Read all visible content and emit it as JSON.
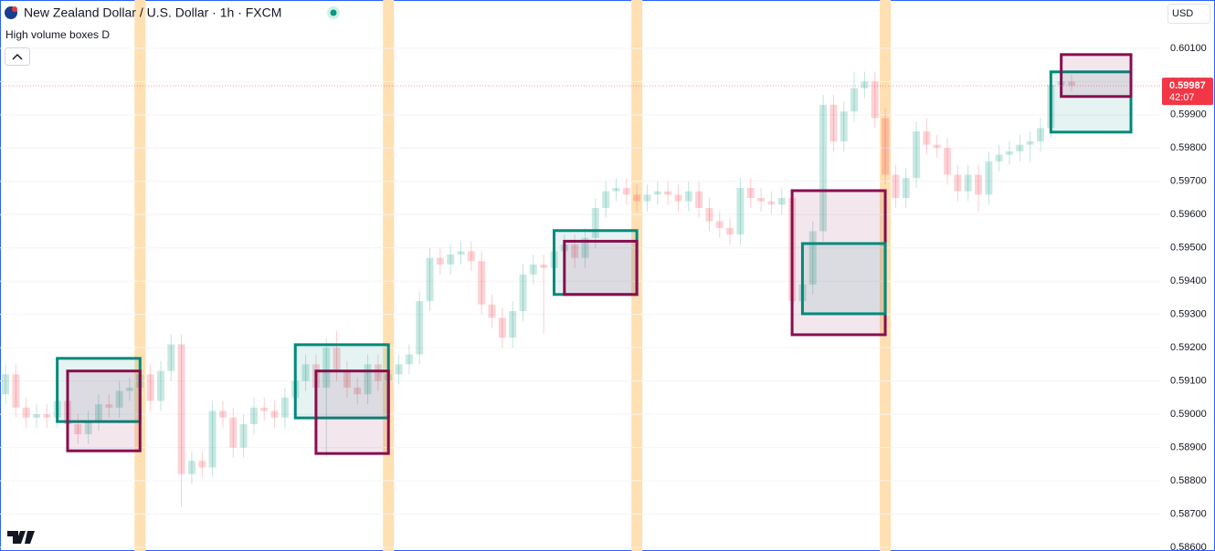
{
  "chart_data": {
    "type": "candlestick",
    "title": "New Zealand Dollar / U.S. Dollar · 1h · FXCM",
    "indicator": "High volume boxes D",
    "currency": "USD",
    "up_color": "#089981",
    "down_color": "#f23645",
    "open": [
      0.5906,
      0.5912,
      0.5902,
      0.5899,
      0.59,
      0.5899,
      0.5904,
      0.5897,
      0.5894,
      0.5898,
      0.5903,
      0.5902,
      0.5907,
      0.5908,
      0.5912,
      0.5904,
      0.5913,
      0.5921,
      0.5882,
      0.5886,
      0.5884,
      0.5901,
      0.5899,
      0.589,
      0.5897,
      0.5902,
      0.5901,
      0.5899,
      0.5905,
      0.591,
      0.5915,
      0.5908,
      0.592,
      0.5913,
      0.5908,
      0.5906,
      0.5915,
      0.591,
      0.5912,
      0.5915,
      0.5918,
      0.5934,
      0.5947,
      0.5945,
      0.5948,
      0.5949,
      0.5946,
      0.5933,
      0.5929,
      0.5923,
      0.5931,
      0.5942,
      0.5945,
      0.5944,
      0.5949,
      0.5951,
      0.5947,
      0.5953,
      0.5962,
      0.5967,
      0.5968,
      0.5966,
      0.5964,
      0.5966,
      0.5967,
      0.5966,
      0.5964,
      0.5967,
      0.5962,
      0.5958,
      0.5956,
      0.5954,
      0.5968,
      0.5965,
      0.5964,
      0.5963,
      0.5965,
      0.5934,
      0.5939,
      0.5955,
      0.5993,
      0.5982,
      0.5991,
      0.5998,
      0.6,
      0.5989,
      0.5972,
      0.5965,
      0.5971,
      0.5985,
      0.5981,
      0.598,
      0.5972,
      0.5967,
      0.5972,
      0.5966,
      0.5976,
      0.5978,
      0.5979,
      0.5981,
      0.5982,
      0.5986,
      0.5999,
      0.6
    ],
    "high": [
      0.5915,
      0.5915,
      0.5905,
      0.5903,
      0.5903,
      0.5907,
      0.5907,
      0.59,
      0.5901,
      0.5906,
      0.5906,
      0.591,
      0.5911,
      0.5915,
      0.5915,
      0.5916,
      0.5924,
      0.5924,
      0.5889,
      0.5889,
      0.5904,
      0.5904,
      0.5902,
      0.59,
      0.5905,
      0.5905,
      0.5904,
      0.5908,
      0.5913,
      0.5918,
      0.5918,
      0.5923,
      0.5925,
      0.5916,
      0.5911,
      0.5918,
      0.5918,
      0.5915,
      0.5918,
      0.5921,
      0.5937,
      0.595,
      0.595,
      0.5951,
      0.5952,
      0.5952,
      0.5949,
      0.5936,
      0.5932,
      0.5934,
      0.5945,
      0.5948,
      0.5948,
      0.5952,
      0.5954,
      0.5954,
      0.5956,
      0.5965,
      0.597,
      0.5971,
      0.5971,
      0.5969,
      0.5969,
      0.597,
      0.597,
      0.5969,
      0.597,
      0.597,
      0.5965,
      0.5961,
      0.5959,
      0.5971,
      0.5971,
      0.5968,
      0.5967,
      0.5968,
      0.5968,
      0.5942,
      0.5958,
      0.5996,
      0.5996,
      0.5994,
      0.6003,
      0.6003,
      0.6003,
      0.5992,
      0.5975,
      0.5974,
      0.5988,
      0.5989,
      0.5984,
      0.5983,
      0.5975,
      0.5975,
      0.5975,
      0.5979,
      0.5981,
      0.5982,
      0.5984,
      0.5985,
      0.5989,
      0.6002,
      0.6003,
      0.6002
    ],
    "low": [
      0.5903,
      0.5899,
      0.5896,
      0.5896,
      0.5896,
      0.5896,
      0.5894,
      0.5891,
      0.5891,
      0.5895,
      0.5899,
      0.5899,
      0.5904,
      0.5905,
      0.5901,
      0.5901,
      0.591,
      0.5872,
      0.5879,
      0.5881,
      0.5881,
      0.5896,
      0.5887,
      0.5887,
      0.5894,
      0.5898,
      0.5896,
      0.5896,
      0.5902,
      0.5907,
      0.5905,
      0.5887,
      0.591,
      0.5905,
      0.5903,
      0.5903,
      0.5907,
      0.5907,
      0.5909,
      0.5912,
      0.5915,
      0.5931,
      0.5942,
      0.5942,
      0.5945,
      0.5943,
      0.593,
      0.5926,
      0.592,
      0.592,
      0.5928,
      0.5939,
      0.5924,
      0.5941,
      0.5946,
      0.5944,
      0.5944,
      0.595,
      0.5959,
      0.5964,
      0.5963,
      0.5961,
      0.5961,
      0.5963,
      0.5963,
      0.5961,
      0.5961,
      0.5959,
      0.5955,
      0.5953,
      0.5951,
      0.5951,
      0.5962,
      0.5961,
      0.596,
      0.596,
      0.5931,
      0.5931,
      0.5936,
      0.5952,
      0.5979,
      0.5979,
      0.5988,
      0.5995,
      0.5986,
      0.5969,
      0.5962,
      0.5962,
      0.5968,
      0.5978,
      0.5977,
      0.5969,
      0.5964,
      0.5964,
      0.5961,
      0.5963,
      0.5973,
      0.5975,
      0.5976,
      0.5976,
      0.5979,
      0.5983,
      0.5996,
      0.5997
    ],
    "close": [
      0.5912,
      0.5902,
      0.5899,
      0.59,
      0.5899,
      0.5904,
      0.5897,
      0.5894,
      0.5898,
      0.5903,
      0.5902,
      0.5907,
      0.5908,
      0.5912,
      0.5904,
      0.5913,
      0.5921,
      0.5882,
      0.5886,
      0.5884,
      0.5901,
      0.5899,
      0.589,
      0.5897,
      0.5902,
      0.5901,
      0.5899,
      0.5905,
      0.591,
      0.5915,
      0.5908,
      0.592,
      0.5913,
      0.5908,
      0.5906,
      0.5915,
      0.591,
      0.5912,
      0.5915,
      0.5918,
      0.5934,
      0.5947,
      0.5945,
      0.5948,
      0.5949,
      0.5946,
      0.5933,
      0.5929,
      0.5923,
      0.5931,
      0.5942,
      0.5945,
      0.5944,
      0.5949,
      0.5951,
      0.5947,
      0.5953,
      0.5962,
      0.5967,
      0.5968,
      0.5966,
      0.5964,
      0.5966,
      0.5967,
      0.5966,
      0.5964,
      0.5967,
      0.5962,
      0.5958,
      0.5956,
      0.5954,
      0.5968,
      0.5965,
      0.5964,
      0.5963,
      0.5965,
      0.5934,
      0.5939,
      0.5955,
      0.5993,
      0.5982,
      0.5991,
      0.5998,
      0.6,
      0.5989,
      0.5972,
      0.5965,
      0.5971,
      0.5985,
      0.5981,
      0.598,
      0.5972,
      0.5967,
      0.5972,
      0.5966,
      0.5976,
      0.5978,
      0.5979,
      0.5981,
      0.5982,
      0.5986,
      0.5999,
      0.6,
      0.59987
    ],
    "boxes": [
      {
        "top": 0.59168,
        "bottom": 0.58978,
        "from": 5,
        "to": 13,
        "color": "#00897b"
      },
      {
        "top": 0.5913,
        "bottom": 0.5889,
        "from": 6,
        "to": 13,
        "color": "#880e4f"
      },
      {
        "top": 0.59209,
        "bottom": 0.58989,
        "from": 28,
        "to": 37,
        "color": "#00897b"
      },
      {
        "top": 0.5913,
        "bottom": 0.58882,
        "from": 30,
        "to": 37,
        "color": "#880e4f"
      },
      {
        "top": 0.59552,
        "bottom": 0.5936,
        "from": 53,
        "to": 61,
        "color": "#00897b"
      },
      {
        "top": 0.5952,
        "bottom": 0.5936,
        "from": 54,
        "to": 61,
        "color": "#880e4f"
      },
      {
        "top": 0.59672,
        "bottom": 0.59239,
        "from": 76,
        "to": 85,
        "color": "#880e4f"
      },
      {
        "top": 0.59513,
        "bottom": 0.59302,
        "from": 77,
        "to": 85,
        "color": "#00897b"
      },
      {
        "top": 0.60029,
        "bottom": 0.59848,
        "from": 101,
        "to": 109,
        "color": "#00897b"
      },
      {
        "top": 0.60081,
        "bottom": 0.59955,
        "from": 102,
        "to": 109,
        "color": "#880e4f"
      }
    ],
    "session_breaks": [
      13,
      37,
      61,
      85
    ],
    "session_color": "#ffe0b2",
    "last_price": 0.59987,
    "countdown": "42:07",
    "ylim": [
      0.58589,
      0.60245
    ],
    "yticks": [
      {
        "value": 0.586,
        "label": "0.58600"
      },
      {
        "value": 0.587,
        "label": "0.58700"
      },
      {
        "value": 0.588,
        "label": "0.58800"
      },
      {
        "value": 0.589,
        "label": "0.58900"
      },
      {
        "value": 0.59,
        "label": "0.59000"
      },
      {
        "value": 0.591,
        "label": "0.59100"
      },
      {
        "value": 0.592,
        "label": "0.59200"
      },
      {
        "value": 0.593,
        "label": "0.59300"
      },
      {
        "value": 0.594,
        "label": "0.59400"
      },
      {
        "value": 0.595,
        "label": "0.59500"
      },
      {
        "value": 0.596,
        "label": "0.59600"
      },
      {
        "value": 0.597,
        "label": "0.59700"
      },
      {
        "value": 0.598,
        "label": "0.59800"
      },
      {
        "value": 0.599,
        "label": "0.59900"
      },
      {
        "value": 0.6,
        "label": "0.60000"
      },
      {
        "value": 0.601,
        "label": "0.60100"
      }
    ],
    "grid": true
  }
}
